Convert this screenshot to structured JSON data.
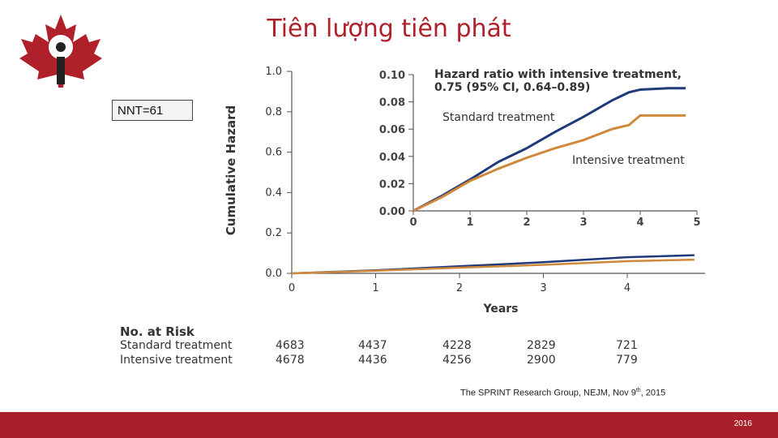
{
  "title": "Tiên lượng tiên phát",
  "nnt_label": "NNT=61",
  "citation_parts": {
    "main": "The SPRINT Research Group, NEJM, Nov 9",
    "sup": "th",
    "tail": ", 2015"
  },
  "footer": {
    "page": "2016",
    "color": "#a9202a"
  },
  "colors": {
    "standard": "#1f3a7a",
    "intensive": "#d0893a",
    "title": "#b0202a"
  },
  "chart_data": {
    "type": "line",
    "xlabel": "Years",
    "ylabel": "Cumulative Hazard",
    "xlim": [
      0,
      5
    ],
    "ylim": [
      0,
      1.0
    ],
    "x_ticks": [
      "0",
      "1",
      "2",
      "3",
      "4"
    ],
    "y_ticks": [
      "0.0",
      "0.2",
      "0.4",
      "0.6",
      "0.8",
      "1.0"
    ],
    "series": [
      {
        "name": "Standard treatment",
        "x": [
          0,
          1,
          2,
          3,
          4,
          4.8
        ],
        "y": [
          0,
          0.015,
          0.035,
          0.055,
          0.08,
          0.09
        ]
      },
      {
        "name": "Intensive treatment",
        "x": [
          0,
          1,
          2,
          3,
          4,
          4.8
        ],
        "y": [
          0,
          0.013,
          0.028,
          0.042,
          0.06,
          0.068
        ]
      }
    ],
    "inset": {
      "xlim": [
        0,
        5
      ],
      "ylim": [
        0,
        0.1
      ],
      "x_ticks": [
        "0",
        "1",
        "2",
        "3",
        "4",
        "5"
      ],
      "y_ticks": [
        "0.00",
        "0.02",
        "0.04",
        "0.06",
        "0.08",
        "0.10"
      ],
      "annotation_line1": "Hazard ratio with intensive treatment,",
      "annotation_line2": "0.75 (95% CI, 0.64–0.89)",
      "label_standard": "Standard treatment",
      "label_intensive": "Intensive treatment",
      "series": [
        {
          "name": "Standard treatment",
          "x": [
            0,
            0.5,
            1,
            1.5,
            2,
            2.5,
            3,
            3.5,
            3.8,
            4,
            4.5,
            4.8
          ],
          "y": [
            0,
            0.011,
            0.023,
            0.036,
            0.046,
            0.058,
            0.069,
            0.081,
            0.087,
            0.089,
            0.09,
            0.09
          ]
        },
        {
          "name": "Intensive treatment",
          "x": [
            0,
            0.5,
            1,
            1.5,
            2,
            2.5,
            3,
            3.5,
            3.8,
            4,
            4.5,
            4.8
          ],
          "y": [
            0,
            0.01,
            0.022,
            0.031,
            0.039,
            0.046,
            0.052,
            0.06,
            0.063,
            0.07,
            0.07,
            0.07
          ]
        }
      ]
    },
    "at_risk": {
      "header": "No. at Risk",
      "rows": [
        {
          "label": "Standard treatment",
          "values": [
            "4683",
            "4437",
            "4228",
            "2829",
            "721"
          ]
        },
        {
          "label": "Intensive treatment",
          "values": [
            "4678",
            "4436",
            "4256",
            "2900",
            "779"
          ]
        }
      ]
    }
  }
}
